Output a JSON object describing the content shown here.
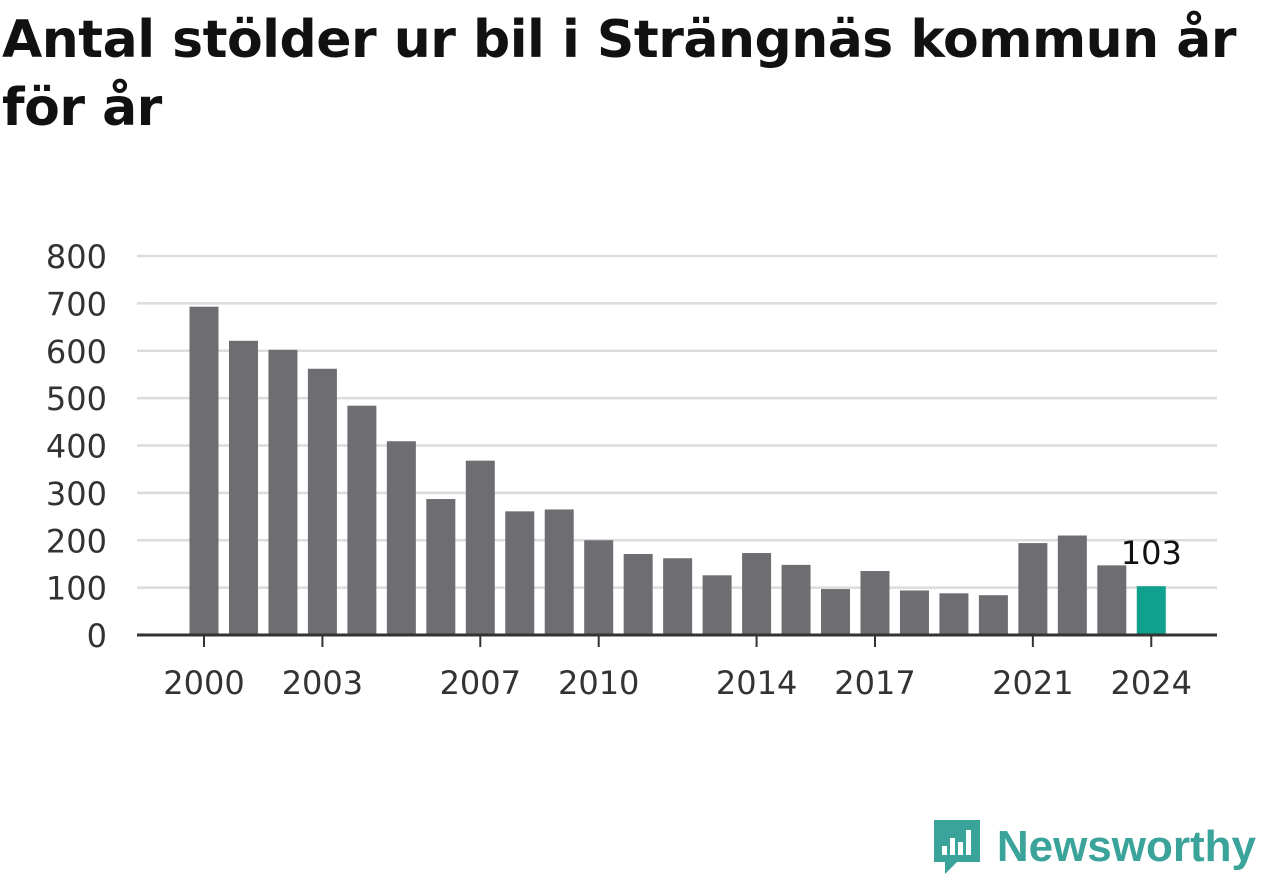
{
  "chart_data": {
    "type": "bar",
    "title": "Antal stölder ur bil i Strängnäs kommun år för år",
    "categories": [
      "2000",
      "2001",
      "2002",
      "2003",
      "2004",
      "2005",
      "2006",
      "2007",
      "2008",
      "2009",
      "2010",
      "2011",
      "2012",
      "2013",
      "2014",
      "2015",
      "2016",
      "2017",
      "2018",
      "2019",
      "2020",
      "2021",
      "2022",
      "2023",
      "2024"
    ],
    "values": [
      693,
      621,
      602,
      562,
      484,
      409,
      287,
      368,
      261,
      265,
      200,
      171,
      162,
      126,
      173,
      148,
      97,
      135,
      94,
      88,
      84,
      194,
      210,
      147,
      103
    ],
    "x_tick_labels": [
      "2000",
      "2003",
      "2007",
      "2010",
      "2014",
      "2017",
      "2021",
      "2024"
    ],
    "y_ticks": [
      0,
      100,
      200,
      300,
      400,
      500,
      600,
      700,
      800
    ],
    "ylim": [
      0,
      800
    ],
    "highlight": {
      "category": "2024",
      "label": "103"
    },
    "grid": true,
    "colors": {
      "bar": "#6e6d72",
      "highlight": "#0fa08e",
      "grid": "#dcdcdc",
      "axis": "#333333"
    }
  },
  "brand": {
    "name": "Newsworthy",
    "icon": "newsworthy-logo-icon",
    "color": "#3aa39a"
  }
}
